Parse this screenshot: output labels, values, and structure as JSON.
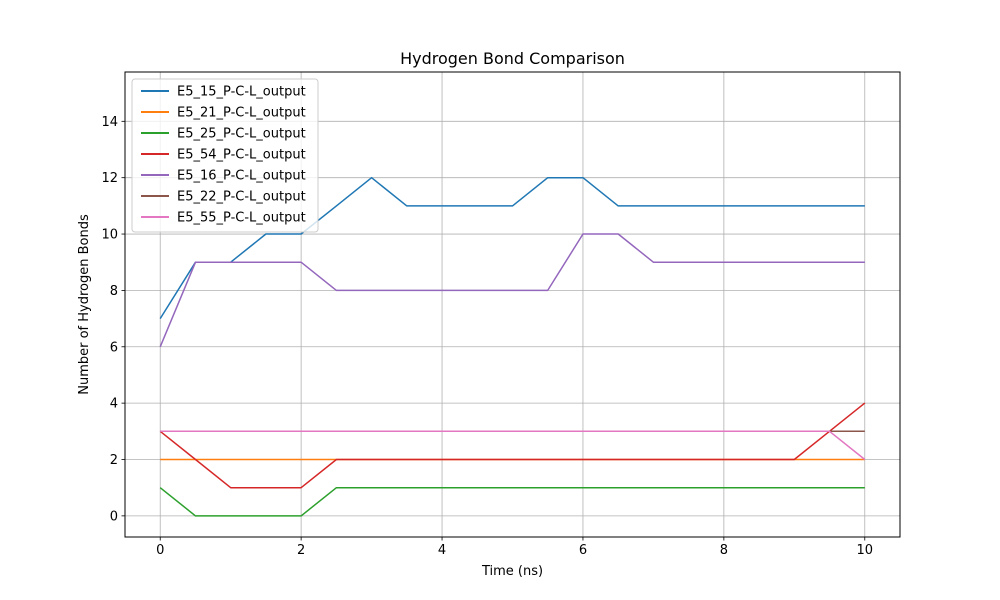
{
  "chart_data": {
    "type": "line",
    "title": "Hydrogen Bond Comparison",
    "xlabel": "Time (ns)",
    "ylabel": "Number of Hydrogen Bonds",
    "xlim": [
      -0.5,
      10.5
    ],
    "ylim": [
      -0.75,
      15.75
    ],
    "xticks": [
      0,
      2,
      4,
      6,
      8,
      10
    ],
    "yticks": [
      0,
      2,
      4,
      6,
      8,
      10,
      12,
      14
    ],
    "grid": true,
    "legend_position": "upper-left",
    "series": [
      {
        "name": "E5_15_P-C-L_output",
        "color": "#1f77b4",
        "x": [
          0,
          0.5,
          1,
          1.5,
          2,
          2.5,
          3,
          3.5,
          4,
          4.5,
          5,
          5.5,
          6,
          6.5,
          7,
          7.5,
          8,
          8.5,
          9,
          9.5,
          10
        ],
        "y": [
          7,
          9,
          9,
          10,
          10,
          11,
          12,
          11,
          11,
          11,
          11,
          12,
          12,
          11,
          11,
          11,
          11,
          11,
          11,
          11,
          11
        ]
      },
      {
        "name": "E5_21_P-C-L_output",
        "color": "#ff7f0e",
        "x": [
          0,
          0.5,
          1,
          1.5,
          2,
          2.5,
          3,
          3.5,
          4,
          4.5,
          5,
          5.5,
          6,
          6.5,
          7,
          7.5,
          8,
          8.5,
          9,
          9.5,
          10
        ],
        "y": [
          2,
          2,
          2,
          2,
          2,
          2,
          2,
          2,
          2,
          2,
          2,
          2,
          2,
          2,
          2,
          2,
          2,
          2,
          2,
          2,
          2
        ]
      },
      {
        "name": "E5_25_P-C-L_output",
        "color": "#2ca02c",
        "x": [
          0,
          0.5,
          1,
          1.5,
          2,
          2.5,
          3,
          3.5,
          4,
          4.5,
          5,
          5.5,
          6,
          6.5,
          7,
          7.5,
          8,
          8.5,
          9,
          9.5,
          10
        ],
        "y": [
          1,
          0,
          0,
          0,
          0,
          1,
          1,
          1,
          1,
          1,
          1,
          1,
          1,
          1,
          1,
          1,
          1,
          1,
          1,
          1,
          1
        ]
      },
      {
        "name": "E5_54_P-C-L_output",
        "color": "#d62728",
        "x": [
          0,
          0.5,
          1,
          1.5,
          2,
          2.5,
          3,
          3.5,
          4,
          4.5,
          5,
          5.5,
          6,
          6.5,
          7,
          7.5,
          8,
          8.5,
          9,
          9.5,
          10
        ],
        "y": [
          3,
          2,
          1,
          1,
          1,
          2,
          2,
          2,
          2,
          2,
          2,
          2,
          2,
          2,
          2,
          2,
          2,
          2,
          2,
          3,
          4
        ]
      },
      {
        "name": "E5_16_P-C-L_output",
        "color": "#9467bd",
        "x": [
          0,
          0.5,
          1,
          1.5,
          2,
          2.5,
          3,
          3.5,
          4,
          4.5,
          5,
          5.5,
          6,
          6.5,
          7,
          7.5,
          8,
          8.5,
          9,
          9.5,
          10
        ],
        "y": [
          6,
          9,
          9,
          9,
          9,
          8,
          8,
          8,
          8,
          8,
          8,
          8,
          10,
          10,
          9,
          9,
          9,
          9,
          9,
          9,
          9
        ]
      },
      {
        "name": "E5_22_P-C-L_output",
        "color": "#8c564b",
        "x": [
          0,
          0.5,
          1,
          1.5,
          2,
          2.5,
          3,
          3.5,
          4,
          4.5,
          5,
          5.5,
          6,
          6.5,
          7,
          7.5,
          8,
          8.5,
          9,
          9.5,
          10
        ],
        "y": [
          3,
          3,
          3,
          3,
          3,
          3,
          3,
          3,
          3,
          3,
          3,
          3,
          3,
          3,
          3,
          3,
          3,
          3,
          3,
          3,
          3
        ]
      },
      {
        "name": "E5_55_P-C-L_output",
        "color": "#e377c2",
        "x": [
          0,
          0.5,
          1,
          1.5,
          2,
          2.5,
          3,
          3.5,
          4,
          4.5,
          5,
          5.5,
          6,
          6.5,
          7,
          7.5,
          8,
          8.5,
          9,
          9.5,
          10
        ],
        "y": [
          3,
          3,
          3,
          3,
          3,
          3,
          3,
          3,
          3,
          3,
          3,
          3,
          3,
          3,
          3,
          3,
          3,
          3,
          3,
          3,
          2
        ]
      }
    ]
  }
}
